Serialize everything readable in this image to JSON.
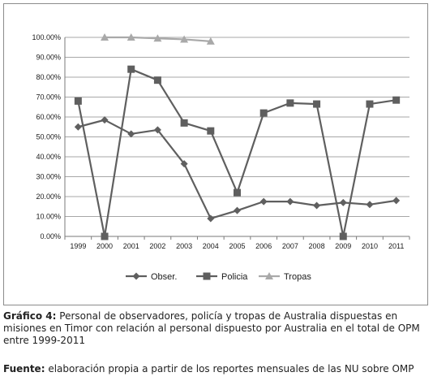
{
  "chart_data": {
    "type": "line",
    "title": "",
    "xlabel": "",
    "ylabel": "",
    "categories": [
      "1999",
      "2000",
      "2001",
      "2002",
      "2003",
      "2004",
      "2005",
      "2006",
      "2007",
      "2008",
      "2009",
      "2010",
      "2011"
    ],
    "y_tick_labels": [
      "0.00%",
      "10.00%",
      "20.00%",
      "30.00%",
      "40.00%",
      "50.00%",
      "60.00%",
      "70.00%",
      "80.00%",
      "90.00%",
      "100.00%"
    ],
    "ylim": [
      0,
      100
    ],
    "y_step": 10,
    "grid": "horizontal",
    "legend_position": "bottom",
    "series": [
      {
        "name": "Obser.",
        "marker": "diamond",
        "color": "#5f5f5f",
        "values": [
          55,
          58.5,
          51.5,
          53.5,
          36.5,
          9,
          13,
          17.5,
          17.5,
          15.5,
          17,
          16,
          18
        ]
      },
      {
        "name": "Policia",
        "marker": "square",
        "color": "#5f5f5f",
        "values": [
          68,
          0,
          84,
          78.5,
          57,
          53,
          22,
          62,
          67,
          66.5,
          0,
          66.5,
          68.5
        ]
      },
      {
        "name": "Tropas",
        "marker": "triangle",
        "color": "#a9a9a9",
        "values": [
          null,
          100,
          100,
          99.5,
          99,
          98,
          null,
          null,
          null,
          null,
          null,
          null,
          null
        ]
      }
    ]
  },
  "caption": {
    "label": "Gráfico 4:",
    "text": " Personal de observadores, policía y tropas de Australia dispuestas en misiones en Timor con relación al personal dispuesto por Australia en el total de OPM entre 1999-2011"
  },
  "source": {
    "label": "Fuente:",
    "text": " elaboración propia a partir de los reportes mensuales de las NU sobre OMP"
  }
}
